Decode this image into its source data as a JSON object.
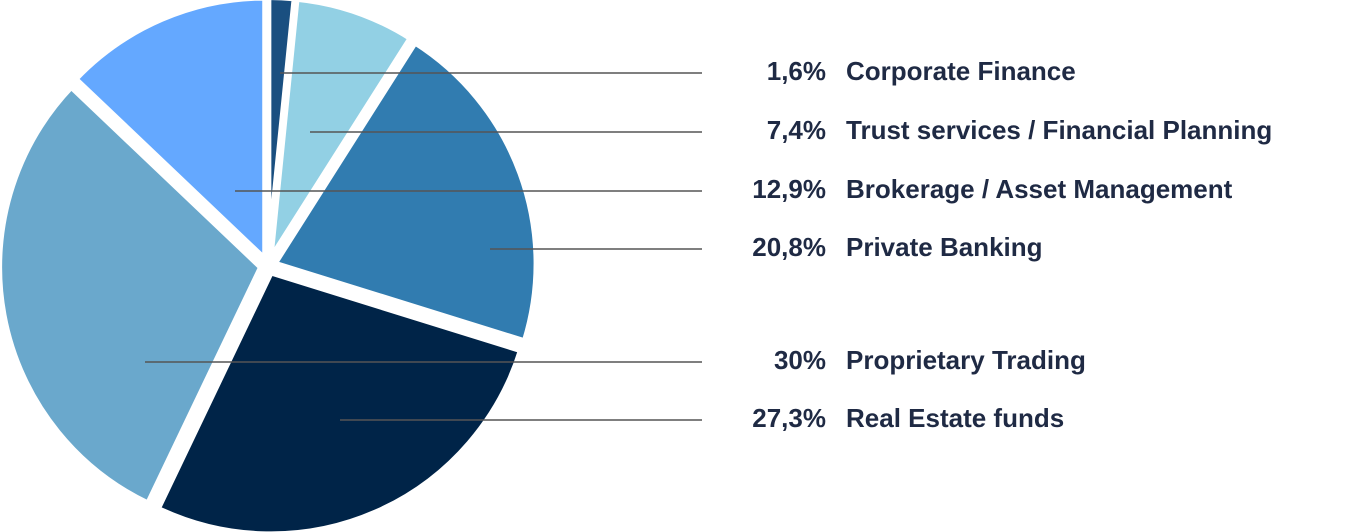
{
  "chart_data": {
    "type": "pie",
    "categories": [
      "Corporate Finance",
      "Trust services / Financial Planning",
      "Private Banking",
      "Real Estate funds",
      "Proprietary Trading",
      "Brokerage / Asset Management"
    ],
    "values": [
      1.6,
      7.4,
      20.8,
      27.3,
      30,
      12.9
    ],
    "value_labels": [
      "1,6%",
      "7,4%",
      "20,8%",
      "27,3%",
      "30%",
      "12,9%"
    ],
    "colors": [
      "#1a4f80",
      "#92d0e4",
      "#317cb0",
      "#002448",
      "#6aa8cc",
      "#64a8ff"
    ]
  }
}
